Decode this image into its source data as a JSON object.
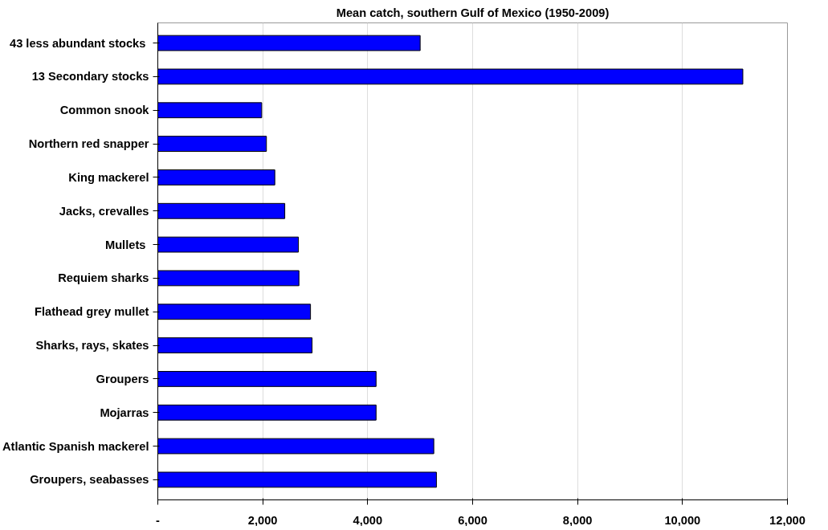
{
  "chart_data": {
    "type": "bar",
    "orientation": "horizontal",
    "title": "Mean catch, southern Gulf of Mexico (1950-2009)",
    "categories": [
      "43  less abundant stocks",
      "13 Secondary stocks",
      "Common snook",
      "Northern red snapper",
      "King mackerel",
      "Jacks, crevalles",
      "Mullets ",
      "Requiem sharks",
      "Flathead grey mullet",
      "Sharks, rays, skates",
      "Groupers",
      "Mojarras",
      "Atlantic Spanish mackerel",
      "Groupers, seabasses"
    ],
    "values": [
      5000,
      11150,
      1980,
      2070,
      2230,
      2420,
      2680,
      2690,
      2910,
      2940,
      4160,
      4160,
      5260,
      5310
    ],
    "color": "#0000ff",
    "xlim": [
      0,
      12000
    ],
    "xticks": [
      {
        "value": 0,
        "label": "-"
      },
      {
        "value": 2000,
        "label": "2,000"
      },
      {
        "value": 4000,
        "label": "4,000"
      },
      {
        "value": 6000,
        "label": "6,000"
      },
      {
        "value": 8000,
        "label": "8,000"
      },
      {
        "value": 10000,
        "label": "10,000"
      },
      {
        "value": 12000,
        "label": "12,000"
      }
    ],
    "grid": "x"
  }
}
